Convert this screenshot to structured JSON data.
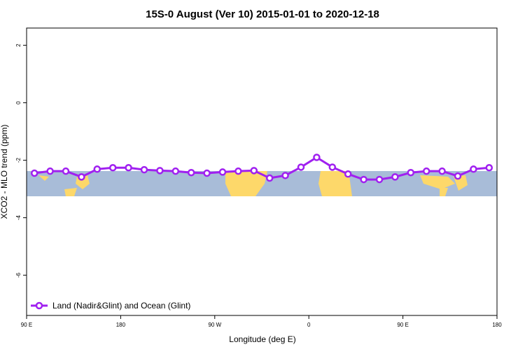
{
  "chart_data": {
    "type": "line",
    "title": "15S-0 August (Ver 10)   2015-01-01 to 2020-12-18",
    "xlabel": "Longitude (deg E)",
    "ylabel": "XCO2 - MLO trend (ppm)",
    "x": [
      97.5,
      112.5,
      127.5,
      142.5,
      157.5,
      172.5,
      187.5,
      202.5,
      217.5,
      232.5,
      247.5,
      262.5,
      277.5,
      292.5,
      307.5,
      322.5,
      337.5,
      352.5,
      367.5,
      382.5,
      397.5,
      412.5,
      427.5,
      442.5,
      457.5,
      472.5,
      487.5,
      502.5,
      517.5,
      532.5
    ],
    "series": [
      {
        "name": "Land (Nadir&Glint) and Ocean (Glint)",
        "color": "#a020f0",
        "values": [
          -2.45,
          -2.38,
          -2.38,
          -2.58,
          -2.31,
          -2.26,
          -2.26,
          -2.33,
          -2.36,
          -2.38,
          -2.43,
          -2.45,
          -2.41,
          -2.38,
          -2.36,
          -2.62,
          -2.53,
          -2.24,
          -1.9,
          -2.24,
          -2.48,
          -2.67,
          -2.67,
          -2.58,
          -2.43,
          -2.38,
          -2.38,
          -2.55,
          -2.31,
          -2.26
        ]
      }
    ],
    "xlim": [
      90,
      540
    ],
    "xticks": [
      {
        "value": 90,
        "label": "90 E"
      },
      {
        "value": 180,
        "label": "180"
      },
      {
        "value": 270,
        "label": "90 W"
      },
      {
        "value": 360,
        "label": "0"
      },
      {
        "value": 450,
        "label": "90 E"
      },
      {
        "value": 540,
        "label": "180"
      }
    ],
    "ylim": [
      -7.4,
      2.6
    ],
    "yticks": [
      2,
      0,
      -2,
      -4,
      -6
    ],
    "legend": "bottom-left"
  }
}
